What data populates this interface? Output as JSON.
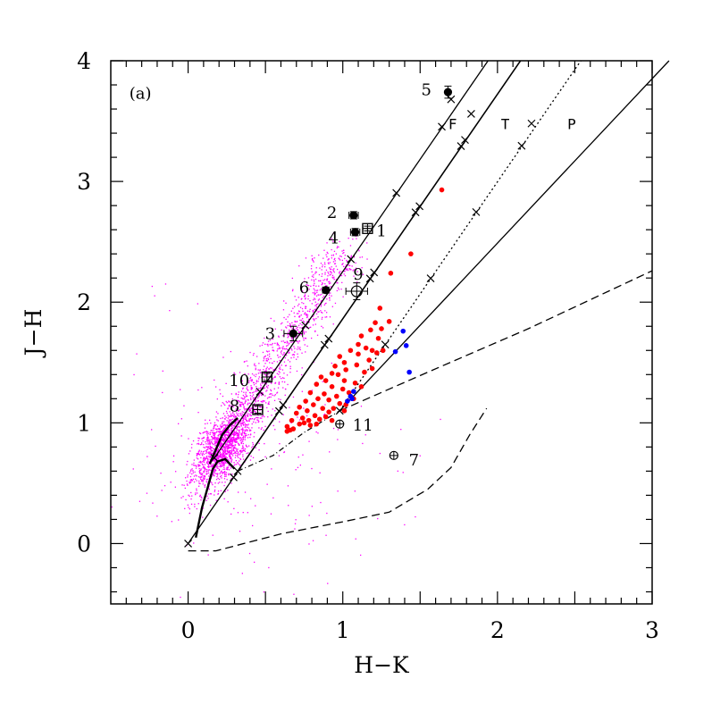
{
  "chart_data": {
    "type": "scatter",
    "panel_label": "(a)",
    "xlabel": "H−K",
    "ylabel": "J−H",
    "xlim": [
      -0.5,
      3.0
    ],
    "ylim": [
      -0.5,
      4.0
    ],
    "x_ticks": [
      0,
      1,
      2,
      3
    ],
    "y_ticks": [
      0,
      1,
      2,
      3,
      4
    ],
    "x_tick_labels": [
      "0",
      "1",
      "2",
      "3"
    ],
    "y_tick_labels": [
      "0",
      "1",
      "2",
      "3",
      "4"
    ],
    "grid": false,
    "legend": "none",
    "colors": {
      "field_stars": "#ff00ff",
      "red_sources": "#ff0000",
      "blue_sources": "#0000ff",
      "lines": "#000000"
    },
    "zone_labels": [
      {
        "text": "F",
        "x": 1.71,
        "y": 3.48
      },
      {
        "text": "T",
        "x": 2.05,
        "y": 3.48
      },
      {
        "text": "P",
        "x": 2.48,
        "y": 3.48
      }
    ],
    "labeled_sources": [
      {
        "id": "1",
        "x": 1.16,
        "y": 2.61,
        "marker": "square",
        "xerr": 0.03,
        "yerr": 0.02,
        "label_dx": 0.09,
        "label_dy": -0.02
      },
      {
        "id": "2",
        "x": 1.07,
        "y": 2.72,
        "marker": "filled",
        "xerr": 0.03,
        "yerr": 0.03,
        "label_dx": -0.14,
        "label_dy": 0.02
      },
      {
        "id": "3",
        "x": 0.68,
        "y": 1.74,
        "marker": "filled",
        "xerr": 0.06,
        "yerr": 0.06,
        "label_dx": -0.15,
        "label_dy": 0.0
      },
      {
        "id": "4",
        "x": 1.08,
        "y": 2.58,
        "marker": "filled",
        "xerr": 0.03,
        "yerr": 0.03,
        "label_dx": -0.14,
        "label_dy": -0.05
      },
      {
        "id": "5",
        "x": 1.68,
        "y": 3.74,
        "marker": "filled",
        "xerr": 0.0,
        "yerr": 0.05,
        "label_dx": -0.14,
        "label_dy": 0.02
      },
      {
        "id": "6",
        "x": 0.89,
        "y": 2.1,
        "marker": "filled",
        "xerr": 0.02,
        "yerr": 0.02,
        "label_dx": -0.14,
        "label_dy": 0.02
      },
      {
        "id": "7",
        "x": 1.33,
        "y": 0.73,
        "marker": "plus-circle",
        "xerr": 0.0,
        "yerr": 0.0,
        "label_dx": 0.13,
        "label_dy": -0.04
      },
      {
        "id": "8",
        "x": 0.45,
        "y": 1.11,
        "marker": "square",
        "xerr": 0.03,
        "yerr": 0.03,
        "label_dx": -0.15,
        "label_dy": 0.03
      },
      {
        "id": "9",
        "x": 1.09,
        "y": 2.09,
        "marker": "open",
        "xerr": 0.07,
        "yerr": 0.07,
        "label_dx": 0.01,
        "label_dy": 0.14
      },
      {
        "id": "10",
        "x": 0.51,
        "y": 1.38,
        "marker": "square",
        "xerr": 0.03,
        "yerr": 0.03,
        "label_dx": -0.18,
        "label_dy": -0.03
      },
      {
        "id": "11",
        "x": 0.98,
        "y": 0.99,
        "marker": "plus-circle",
        "xerr": 0.0,
        "yerr": 0.0,
        "label_dx": 0.15,
        "label_dy": -0.01
      }
    ],
    "red_points": [
      [
        1.64,
        2.93
      ],
      [
        1.44,
        2.4
      ],
      [
        1.31,
        2.24
      ],
      [
        1.24,
        1.95
      ],
      [
        1.3,
        1.84
      ],
      [
        1.21,
        1.83
      ],
      [
        1.25,
        1.78
      ],
      [
        1.18,
        1.77
      ],
      [
        1.12,
        1.72
      ],
      [
        1.23,
        1.7
      ],
      [
        1.15,
        1.62
      ],
      [
        1.1,
        1.65
      ],
      [
        1.19,
        1.6
      ],
      [
        1.26,
        1.6
      ],
      [
        1.05,
        1.6
      ],
      [
        1.17,
        1.52
      ],
      [
        1.22,
        1.58
      ],
      [
        1.1,
        1.57
      ],
      [
        0.98,
        1.55
      ],
      [
        1.01,
        1.5
      ],
      [
        1.09,
        1.48
      ],
      [
        0.95,
        1.47
      ],
      [
        1.02,
        1.44
      ],
      [
        0.93,
        1.41
      ],
      [
        1.14,
        1.42
      ],
      [
        1.19,
        1.45
      ],
      [
        0.97,
        1.4
      ],
      [
        0.86,
        1.38
      ],
      [
        0.89,
        1.35
      ],
      [
        1.01,
        1.35
      ],
      [
        1.08,
        1.33
      ],
      [
        1.12,
        1.3
      ],
      [
        0.83,
        1.32
      ],
      [
        0.93,
        1.3
      ],
      [
        1.0,
        1.28
      ],
      [
        0.79,
        1.25
      ],
      [
        0.88,
        1.24
      ],
      [
        0.96,
        1.22
      ],
      [
        1.04,
        1.25
      ],
      [
        1.07,
        1.2
      ],
      [
        0.84,
        1.2
      ],
      [
        0.91,
        1.19
      ],
      [
        0.76,
        1.18
      ],
      [
        0.98,
        1.16
      ],
      [
        1.02,
        1.15
      ],
      [
        0.81,
        1.15
      ],
      [
        0.72,
        1.13
      ],
      [
        0.87,
        1.12
      ],
      [
        0.94,
        1.12
      ],
      [
        0.77,
        1.1
      ],
      [
        1.01,
        1.1
      ],
      [
        0.7,
        1.08
      ],
      [
        0.82,
        1.06
      ],
      [
        0.89,
        1.05
      ],
      [
        0.74,
        1.04
      ],
      [
        0.78,
        1.02
      ],
      [
        0.85,
        1.03
      ],
      [
        0.93,
        1.02
      ],
      [
        0.67,
        1.02
      ],
      [
        0.72,
        0.99
      ],
      [
        0.79,
        0.98
      ],
      [
        0.64,
        0.97
      ],
      [
        0.68,
        0.95
      ],
      [
        0.66,
        0.94
      ],
      [
        0.64,
        0.93
      ],
      [
        0.75,
        1.0
      ],
      [
        0.83,
        0.99
      ],
      [
        0.91,
        1.09
      ]
    ],
    "blue_points": [
      [
        1.39,
        1.76
      ],
      [
        1.41,
        1.64
      ],
      [
        1.34,
        1.59
      ],
      [
        1.43,
        1.42
      ],
      [
        1.07,
        1.26
      ],
      [
        1.05,
        1.22
      ],
      [
        1.03,
        1.18
      ],
      [
        1.06,
        1.2
      ]
    ],
    "field_star_count": 2600
  }
}
